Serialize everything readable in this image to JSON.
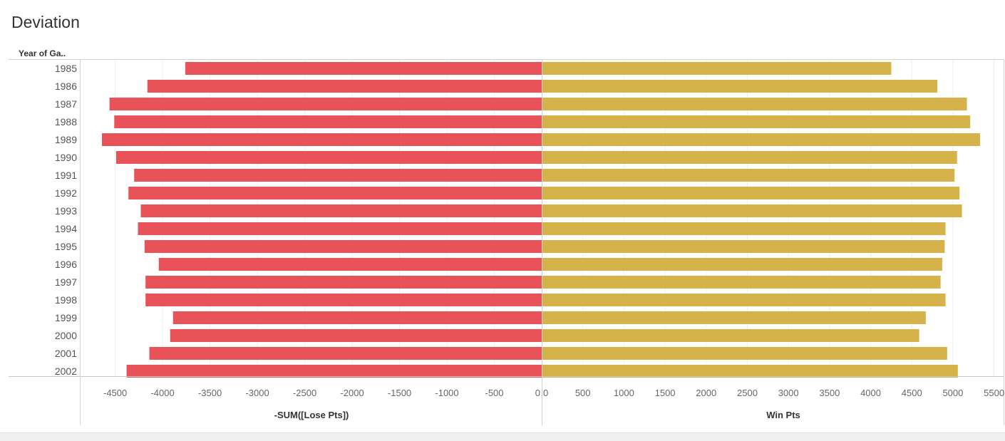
{
  "title": "Deviation",
  "chart_data": {
    "type": "bar",
    "orientation": "horizontal",
    "row_header": "Year of Ga..",
    "categories": [
      "1985",
      "1986",
      "1987",
      "1988",
      "1989",
      "1990",
      "1991",
      "1992",
      "1993",
      "1994",
      "1995",
      "1996",
      "1997",
      "1998",
      "1999",
      "2000",
      "2001",
      "2002"
    ],
    "series": [
      {
        "name": "-SUM([Lose Pts])",
        "color": "#e8535a",
        "values": [
          -3760,
          -4160,
          -4560,
          -4510,
          -4640,
          -4490,
          -4300,
          -4360,
          -4230,
          -4260,
          -4190,
          -4040,
          -4180,
          -4180,
          -3890,
          -3920,
          -4140,
          -4380
        ],
        "xlim": [
          -4800,
          0
        ],
        "ticks": [
          -4500,
          -4000,
          -3500,
          -3000,
          -2500,
          -2000,
          -1500,
          -1000,
          -500,
          0
        ],
        "xlabel": "-SUM([Lose Pts])"
      },
      {
        "name": "Win Pts",
        "color": "#d6b24a",
        "values": [
          4250,
          4810,
          5170,
          5210,
          5330,
          5050,
          5020,
          5080,
          5110,
          4910,
          4900,
          4870,
          4850,
          4910,
          4670,
          4590,
          4930,
          5060
        ],
        "xlim": [
          0,
          5500
        ],
        "ticks": [
          0,
          500,
          1000,
          1500,
          2000,
          2500,
          3000,
          3500,
          4000,
          4500,
          5000,
          5500
        ],
        "xlabel": "Win Pts"
      }
    ],
    "grid": true
  }
}
